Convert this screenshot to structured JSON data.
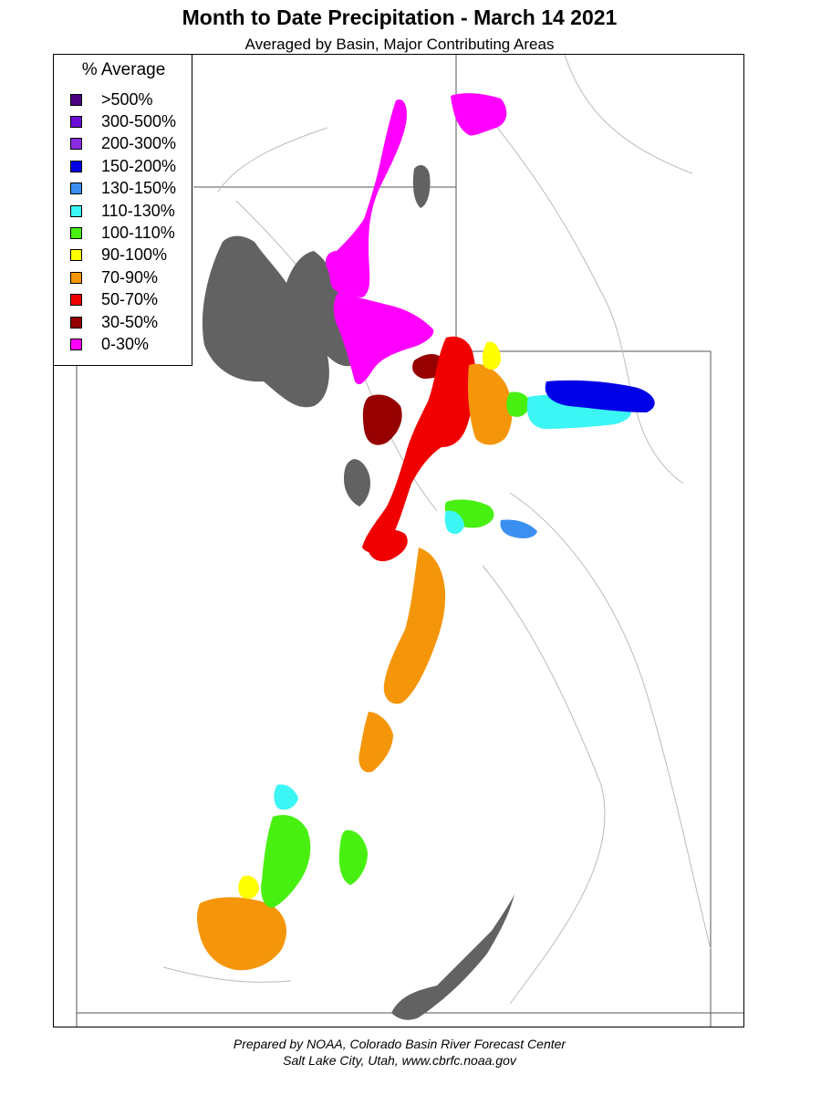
{
  "title": "Month to Date Precipitation - March 14 2021",
  "subtitle": "Averaged by Basin, Major Contributing Areas",
  "legend": {
    "title": "% Average",
    "items": [
      {
        "label": ">500%",
        "color": "#4b0082"
      },
      {
        "label": "300-500%",
        "color": "#6a0dd6"
      },
      {
        "label": "200-300%",
        "color": "#8a2be2"
      },
      {
        "label": "150-200%",
        "color": "#0000e6"
      },
      {
        "label": "130-150%",
        "color": "#3a8ff0"
      },
      {
        "label": "110-130%",
        "color": "#3cf5f5"
      },
      {
        "label": "100-110%",
        "color": "#48f012"
      },
      {
        "label": "90-100%",
        "color": "#ffff00"
      },
      {
        "label": "70-90%",
        "color": "#f5960a"
      },
      {
        "label": "50-70%",
        "color": "#f00000"
      },
      {
        "label": "30-50%",
        "color": "#960000"
      },
      {
        "label": "0-30%",
        "color": "#ff00ff"
      }
    ]
  },
  "map": {
    "water_color": "#626262",
    "regions": [
      {
        "category": "0-30%",
        "color": "#ff00ff"
      },
      {
        "category": "30-50%",
        "color": "#960000"
      },
      {
        "category": "50-70%",
        "color": "#f00000"
      },
      {
        "category": "70-90%",
        "color": "#f5960a"
      },
      {
        "category": "90-100%",
        "color": "#ffff00"
      },
      {
        "category": "100-110%",
        "color": "#48f012"
      },
      {
        "category": "110-130%",
        "color": "#3cf5f5"
      },
      {
        "category": "130-150%",
        "color": "#3a8ff0"
      },
      {
        "category": "150-200%",
        "color": "#0000e6"
      }
    ]
  },
  "footer": {
    "line1": "Prepared by NOAA, Colorado Basin River Forecast Center",
    "line2": "Salt Lake City, Utah, www.cbrfc.noaa.gov"
  }
}
